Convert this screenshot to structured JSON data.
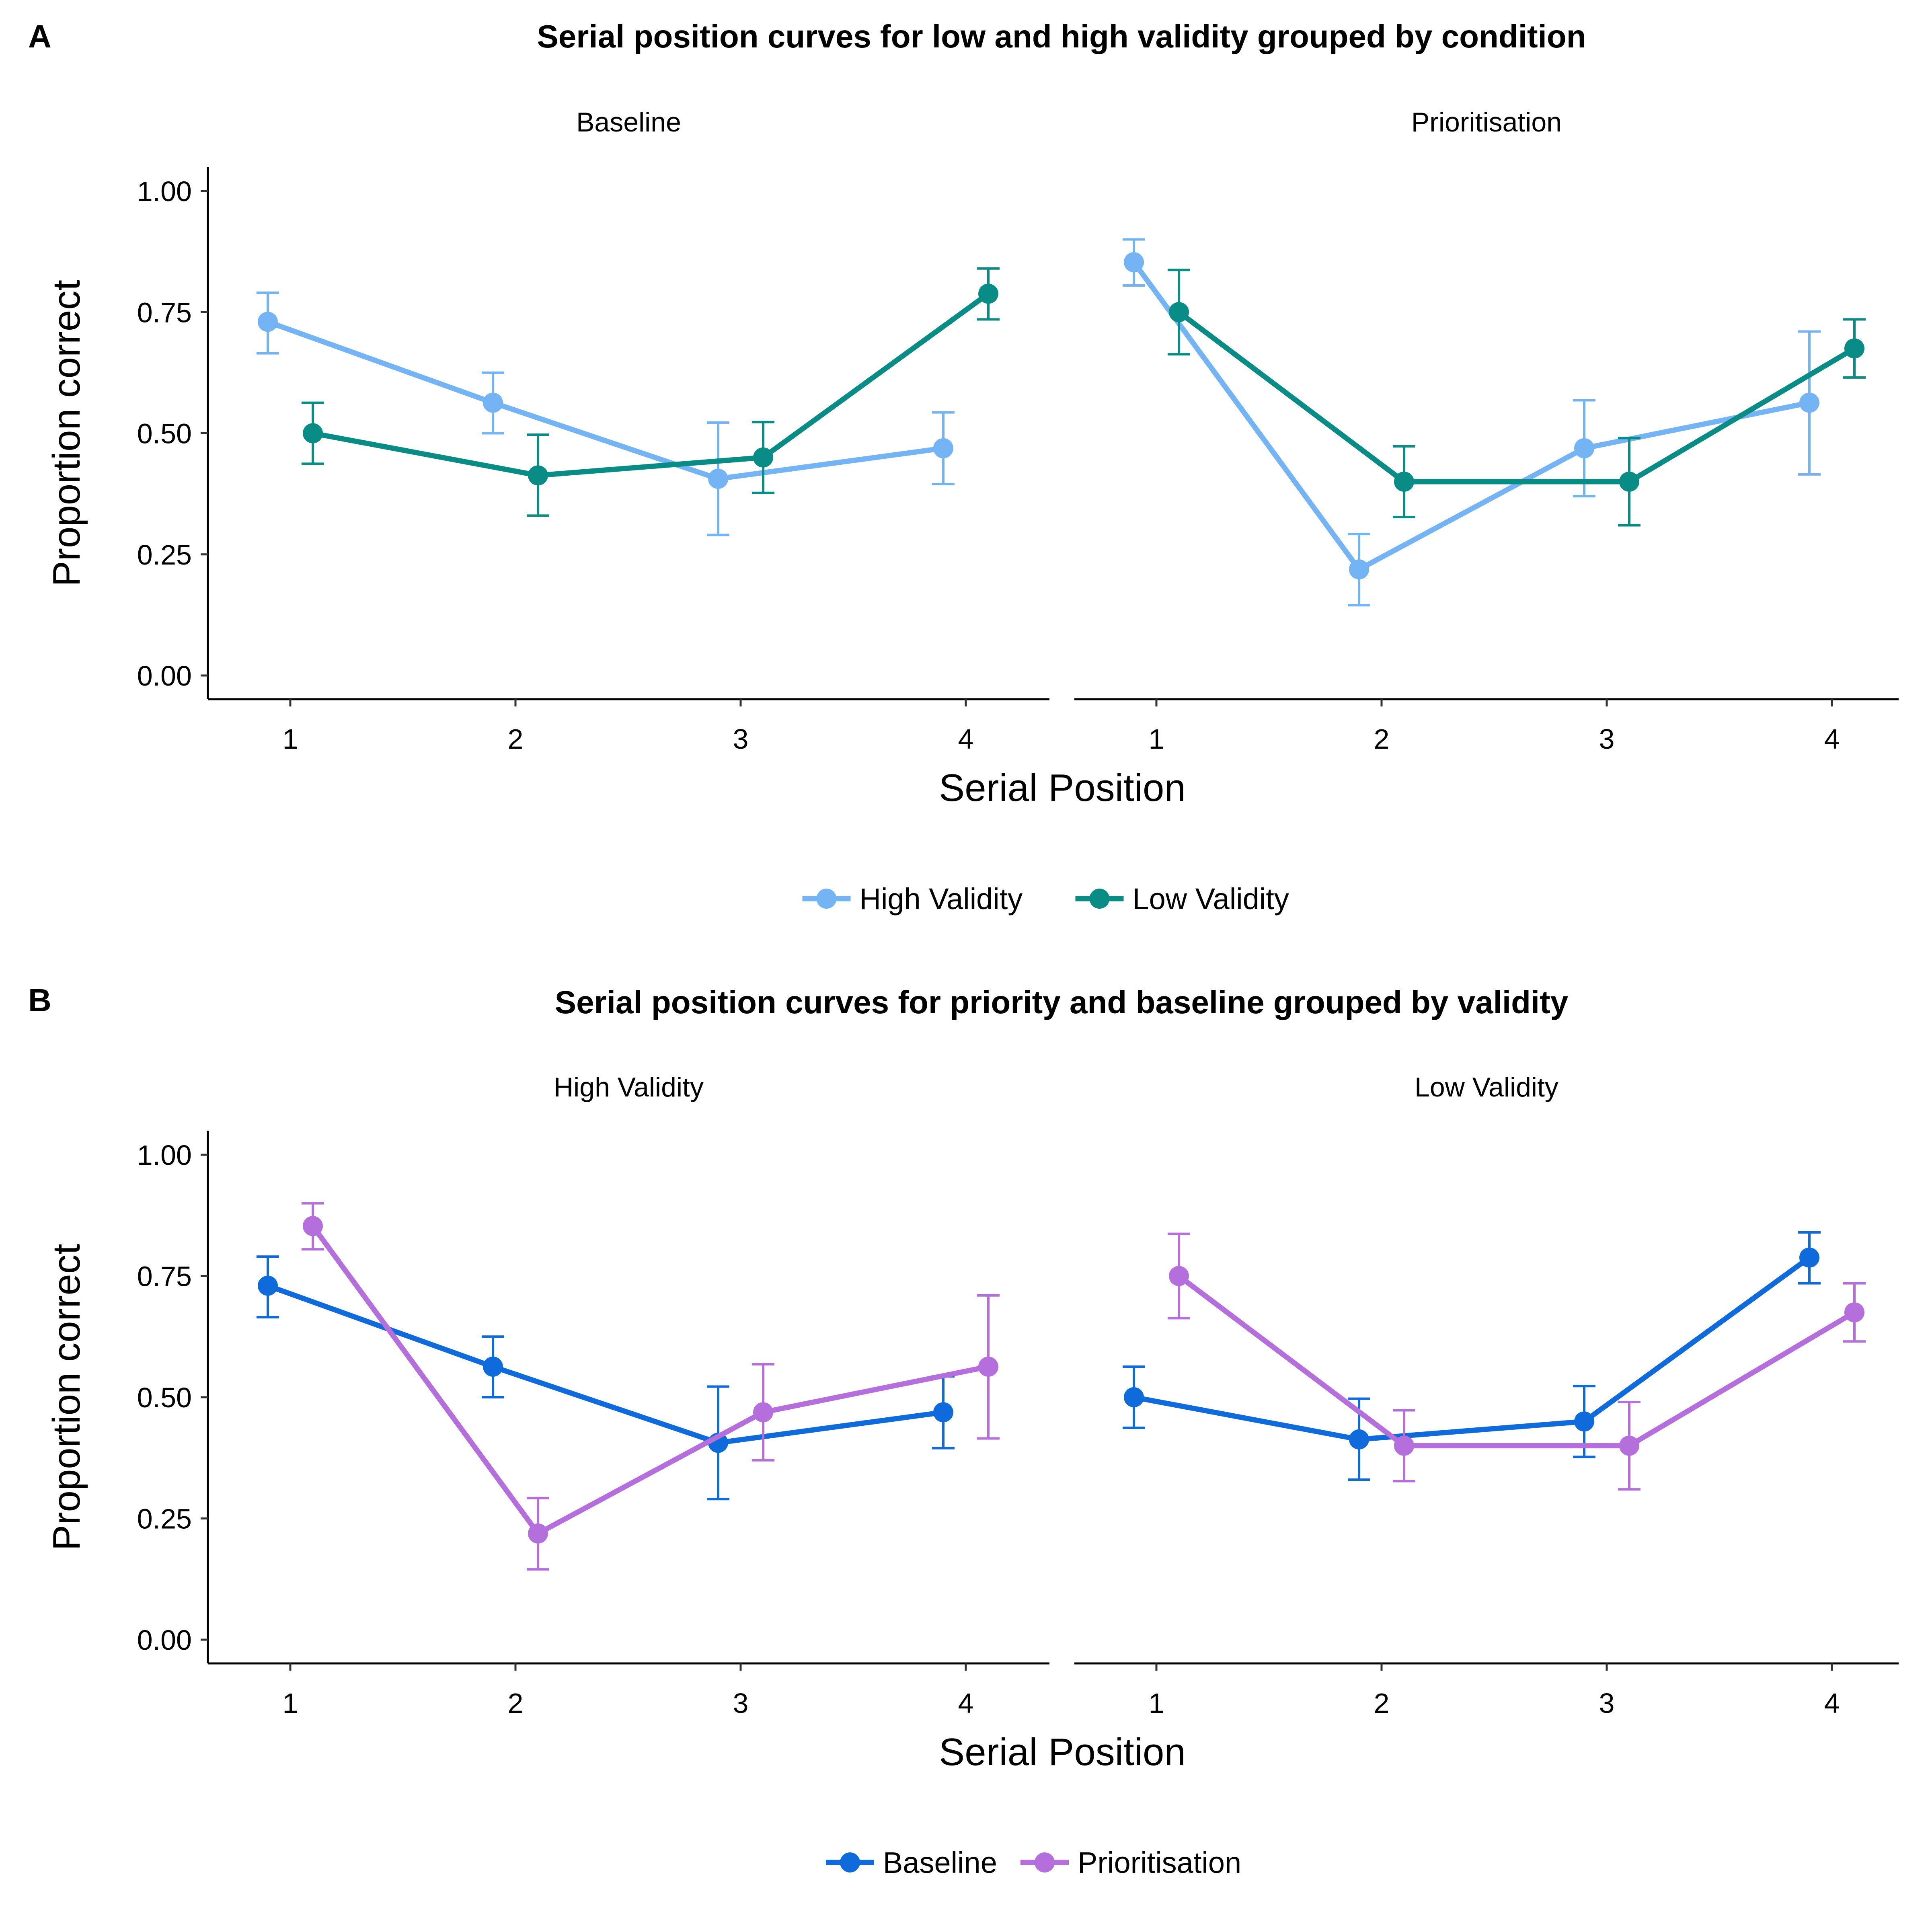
{
  "chart_data": [
    {
      "type": "line",
      "panel_label": "A",
      "title": "Serial position curves for low and high validity grouped by condition",
      "xlabel": "Serial Position",
      "ylabel": "Proportion correct",
      "x_ticks": [
        "1",
        "2",
        "3",
        "4"
      ],
      "y_ticks": [
        "0.00",
        "0.25",
        "0.50",
        "0.75",
        "1.00"
      ],
      "ylim": [
        0,
        1
      ],
      "grid": false,
      "legend_position": "bottom",
      "facets": [
        {
          "label": "Baseline",
          "series": [
            {
              "name": "High Validity",
              "color": "#74b4f5",
              "offset": -0.1,
              "x": [
                1,
                2,
                3,
                4
              ],
              "y": [
                0.73,
                0.563,
                0.406,
                0.469
              ],
              "ymin": [
                0.665,
                0.5,
                0.29,
                0.395
              ],
              "ymax": [
                0.79,
                0.625,
                0.522,
                0.543
              ]
            },
            {
              "name": "Low Validity",
              "color": "#0a8c86",
              "offset": 0.1,
              "x": [
                1,
                2,
                3,
                4
              ],
              "y": [
                0.5,
                0.413,
                0.45,
                0.788
              ],
              "ymin": [
                0.437,
                0.33,
                0.377,
                0.735
              ],
              "ymax": [
                0.563,
                0.497,
                0.523,
                0.84
              ]
            }
          ]
        },
        {
          "label": "Prioritisation",
          "series": [
            {
              "name": "High Validity",
              "color": "#74b4f5",
              "offset": -0.1,
              "x": [
                1,
                2,
                3,
                4
              ],
              "y": [
                0.853,
                0.219,
                0.469,
                0.563
              ],
              "ymin": [
                0.805,
                0.145,
                0.37,
                0.415
              ],
              "ymax": [
                0.9,
                0.292,
                0.568,
                0.71
              ]
            },
            {
              "name": "Low Validity",
              "color": "#0a8c86",
              "offset": 0.1,
              "x": [
                1,
                2,
                3,
                4
              ],
              "y": [
                0.75,
                0.4,
                0.4,
                0.675
              ],
              "ymin": [
                0.663,
                0.327,
                0.31,
                0.615
              ],
              "ymax": [
                0.837,
                0.473,
                0.49,
                0.735
              ]
            }
          ]
        }
      ]
    },
    {
      "type": "line",
      "panel_label": "B",
      "title": "Serial position curves for priority and baseline grouped by validity",
      "xlabel": "Serial Position",
      "ylabel": "Proportion correct",
      "x_ticks": [
        "1",
        "2",
        "3",
        "4"
      ],
      "y_ticks": [
        "0.00",
        "0.25",
        "0.50",
        "0.75",
        "1.00"
      ],
      "ylim": [
        0,
        1
      ],
      "grid": false,
      "legend_position": "bottom",
      "facets": [
        {
          "label": "High Validity",
          "series": [
            {
              "name": "Baseline",
              "color": "#0f6bdb",
              "offset": -0.1,
              "x": [
                1,
                2,
                3,
                4
              ],
              "y": [
                0.73,
                0.563,
                0.406,
                0.469
              ],
              "ymin": [
                0.665,
                0.5,
                0.29,
                0.395
              ],
              "ymax": [
                0.79,
                0.625,
                0.522,
                0.543
              ]
            },
            {
              "name": "Prioritisation",
              "color": "#b56fdc",
              "offset": 0.1,
              "x": [
                1,
                2,
                3,
                4
              ],
              "y": [
                0.853,
                0.219,
                0.469,
                0.563
              ],
              "ymin": [
                0.805,
                0.145,
                0.37,
                0.415
              ],
              "ymax": [
                0.9,
                0.292,
                0.568,
                0.71
              ]
            }
          ]
        },
        {
          "label": "Low Validity",
          "series": [
            {
              "name": "Baseline",
              "color": "#0f6bdb",
              "offset": -0.1,
              "x": [
                1,
                2,
                3,
                4
              ],
              "y": [
                0.5,
                0.413,
                0.45,
                0.788
              ],
              "ymin": [
                0.437,
                0.33,
                0.377,
                0.735
              ],
              "ymax": [
                0.563,
                0.497,
                0.523,
                0.84
              ]
            },
            {
              "name": "Prioritisation",
              "color": "#b56fdc",
              "offset": 0.1,
              "x": [
                1,
                2,
                3,
                4
              ],
              "y": [
                0.75,
                0.4,
                0.4,
                0.675
              ],
              "ymin": [
                0.663,
                0.327,
                0.31,
                0.615
              ],
              "ymax": [
                0.837,
                0.473,
                0.49,
                0.735
              ]
            }
          ]
        }
      ]
    }
  ]
}
